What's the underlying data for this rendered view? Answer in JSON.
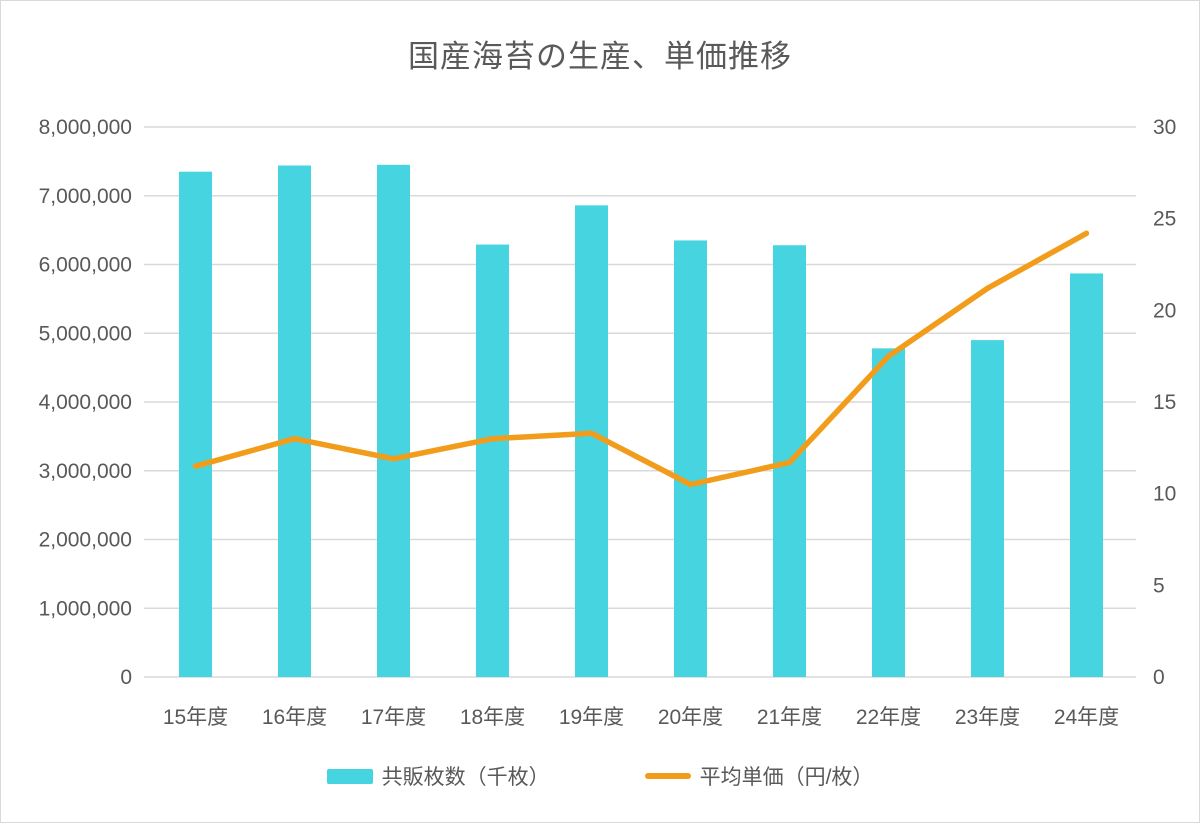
{
  "chart": {
    "title": "国産海苔の生産、単価推移",
    "colors": {
      "bar": "#46D4E0",
      "line": "#F29C1C",
      "text": "#595959",
      "grid": "#D9D9D9",
      "background": "#FFFFFF"
    },
    "legend": [
      {
        "label": "共販枚数（千枚）",
        "type": "bar"
      },
      {
        "label": "平均単価（円/枚）",
        "type": "line"
      }
    ]
  },
  "chart_data": {
    "type": "bar+line",
    "title": "国産海苔の生産、単価推移",
    "categories": [
      "15年度",
      "16年度",
      "17年度",
      "18年度",
      "19年度",
      "20年度",
      "21年度",
      "22年度",
      "23年度",
      "24年度"
    ],
    "series": [
      {
        "name": "共販枚数（千枚）",
        "type": "bar",
        "axis": "left",
        "color": "#46D4E0",
        "values": [
          7350000,
          7440000,
          7450000,
          6290000,
          6860000,
          6350000,
          6280000,
          4780000,
          4900000,
          5870000
        ]
      },
      {
        "name": "平均単価（円/枚）",
        "type": "line",
        "axis": "right",
        "color": "#F29C1C",
        "values": [
          11.5,
          13.0,
          11.9,
          13.0,
          13.3,
          10.5,
          11.7,
          17.5,
          21.2,
          24.2
        ]
      }
    ],
    "left_axis": {
      "min": 0,
      "max": 8000000,
      "step": 1000000,
      "tick_labels": [
        "0",
        "1,000,000",
        "2,000,000",
        "3,000,000",
        "4,000,000",
        "5,000,000",
        "6,000,000",
        "7,000,000",
        "8,000,000"
      ]
    },
    "right_axis": {
      "min": 0,
      "max": 30,
      "step": 5,
      "tick_labels": [
        "0",
        "5",
        "10",
        "15",
        "20",
        "25",
        "30"
      ]
    },
    "grid": true,
    "legend_position": "bottom"
  }
}
